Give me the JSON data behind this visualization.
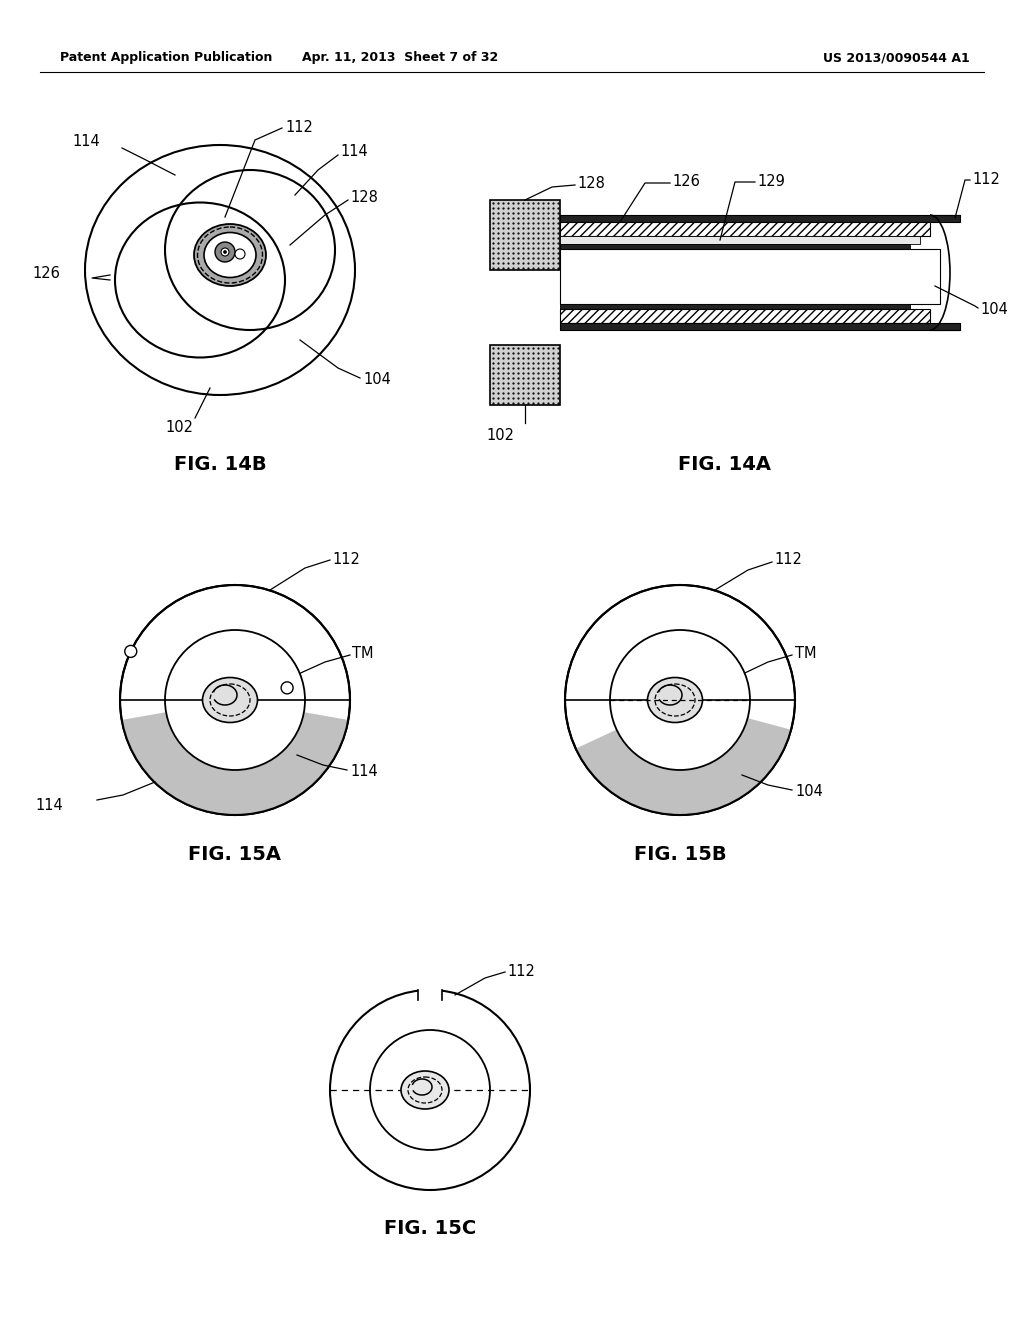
{
  "bg_color": "#ffffff",
  "header_left": "Patent Application Publication",
  "header_center": "Apr. 11, 2013  Sheet 7 of 32",
  "header_right": "US 2013/0090544 A1"
}
